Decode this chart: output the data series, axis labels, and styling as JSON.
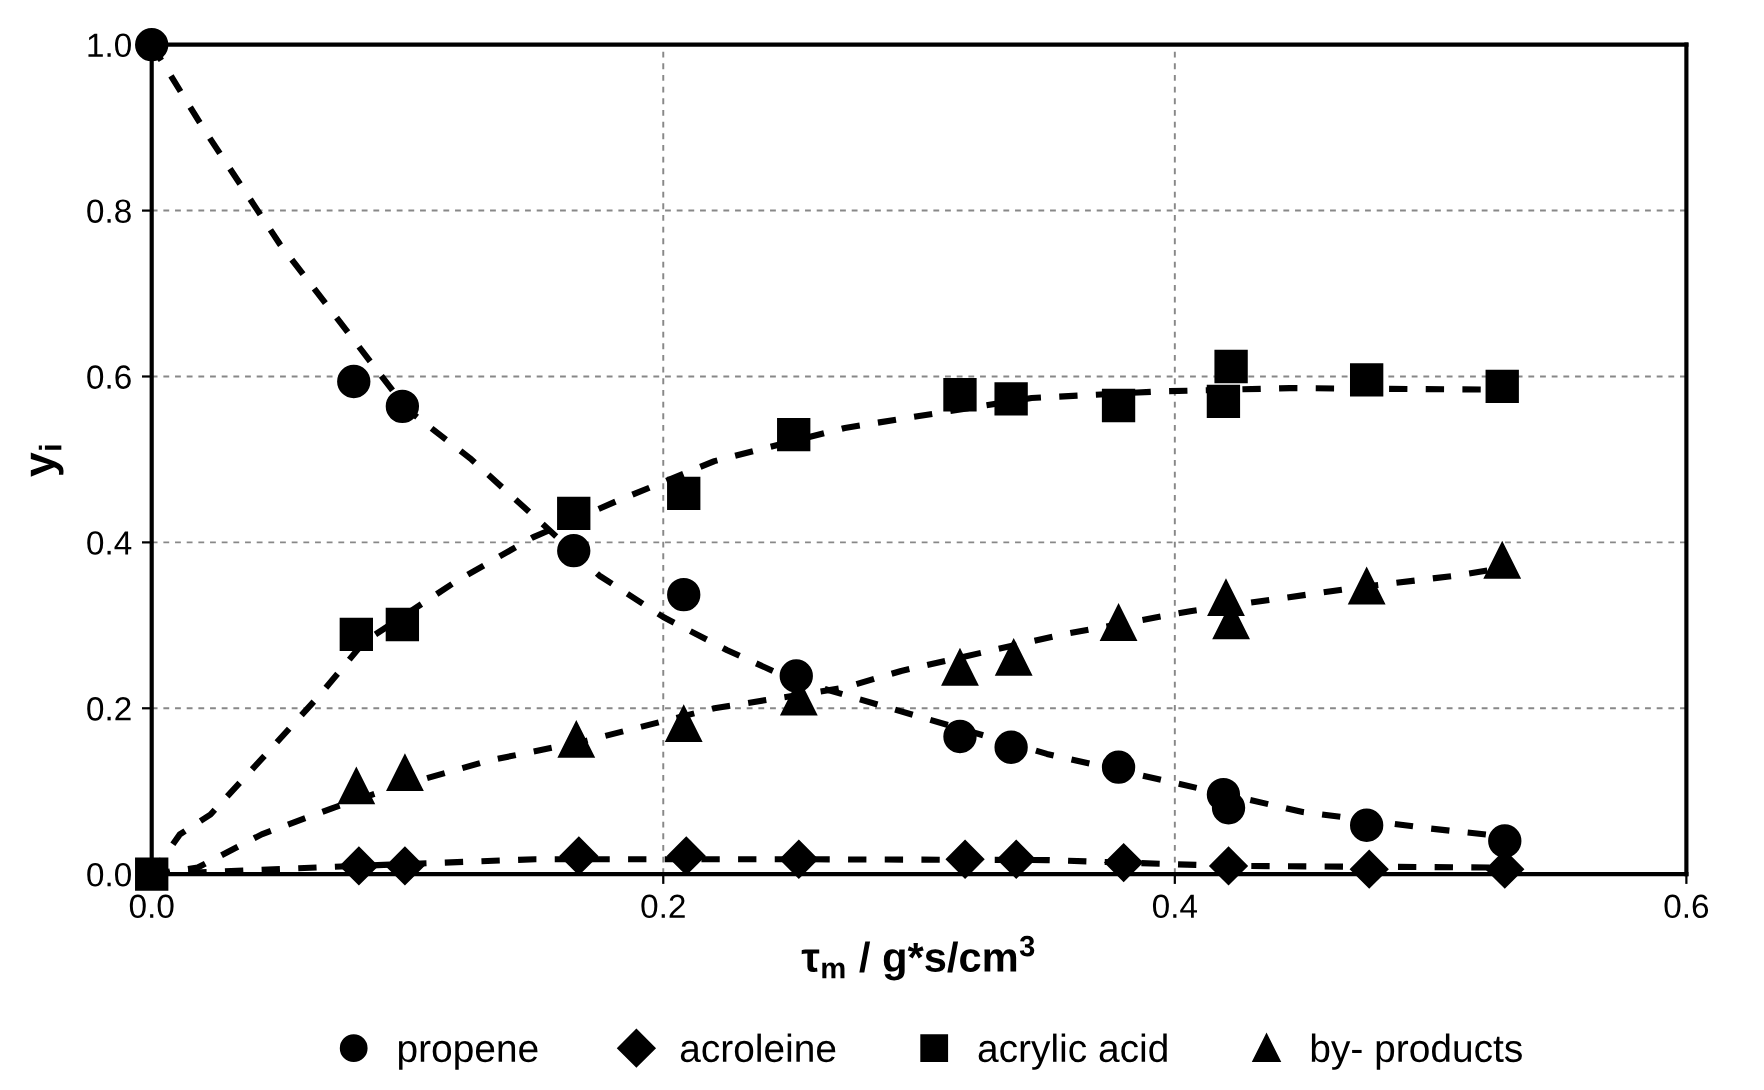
{
  "chart_data": {
    "type": "scatter",
    "xlabel": "τ$_{m}$ / g*s/cm$^{3}$",
    "ylabel": "y$_{i}$",
    "xlim": [
      0,
      0.6
    ],
    "ylim": [
      0,
      1.0
    ],
    "xticks": [
      {
        "value": 0,
        "label": "0.0"
      },
      0.2,
      0.4,
      0.6
    ],
    "yticks": [
      {
        "value": 0,
        "label": "0.0"
      },
      0.2,
      0.4,
      0.6,
      0.8,
      {
        "value": 1.0,
        "label": "1.0"
      }
    ],
    "grid": true,
    "legend": "bottom",
    "series": [
      {
        "type": "line",
        "color": "#000000",
        "marker": "none",
        "line_style": "dashed",
        "x": [
          0,
          0.02,
          0.05,
          0.08,
          0.1,
          0.125,
          0.15,
          0.175,
          0.2,
          0.225,
          0.25,
          0.3,
          0.35,
          0.4,
          0.45,
          0.5,
          0.53
        ],
        "values": [
          1,
          0.9,
          0.76,
          0.64,
          0.56,
          0.5,
          0.43,
          0.36,
          0.31,
          0.27,
          0.235,
          0.19,
          0.145,
          0.11,
          0.075,
          0.055,
          0.045
        ]
      },
      {
        "type": "line",
        "color": "#000000",
        "marker": "none",
        "line_style": "dashed",
        "x": [
          0,
          0.04,
          0.08,
          0.15,
          0.25,
          0.35,
          0.42,
          0.53
        ],
        "values": [
          0,
          0.005,
          0.01,
          0.018,
          0.018,
          0.017,
          0.01,
          0.008
        ]
      },
      {
        "type": "line",
        "color": "#000000",
        "marker": "none",
        "line_style": "dashed",
        "x": [
          0,
          0.011,
          0.023,
          0.046,
          0.066,
          0.083,
          0.119,
          0.149,
          0.182,
          0.22,
          0.271,
          0.344,
          0.394,
          0.445,
          0.53
        ],
        "values": [
          0,
          0.048,
          0.072,
          0.149,
          0.217,
          0.28,
          0.353,
          0.406,
          0.45,
          0.498,
          0.538,
          0.574,
          0.582,
          0.586,
          0.584
        ]
      },
      {
        "type": "line",
        "color": "#000000",
        "marker": "none",
        "line_style": "dashed",
        "x": [
          0,
          0.018,
          0.043,
          0.071,
          0.094,
          0.132,
          0.17,
          0.22,
          0.271,
          0.293,
          0.356,
          0.406,
          0.47,
          0.51,
          0.528
        ],
        "values": [
          0,
          0.008,
          0.048,
          0.08,
          0.104,
          0.137,
          0.161,
          0.2,
          0.225,
          0.245,
          0.289,
          0.317,
          0.345,
          0.36,
          0.369
        ]
      },
      {
        "name": "propene",
        "color": "#000000",
        "marker": "circle",
        "x": [
          0,
          0.079,
          0.098,
          0.165,
          0.208,
          0.252,
          0.316,
          0.336,
          0.378,
          0.419,
          0.421,
          0.475,
          0.529
        ],
        "values": [
          1.0,
          0.594,
          0.564,
          0.39,
          0.337,
          0.239,
          0.166,
          0.153,
          0.129,
          0.096,
          0.08,
          0.059,
          0.04
        ]
      },
      {
        "name": "acroleine",
        "color": "#000000",
        "marker": "diamond",
        "x": [
          0.081,
          0.099,
          0.167,
          0.209,
          0.253,
          0.318,
          0.338,
          0.38,
          0.421,
          0.476,
          0.529
        ],
        "values": [
          0.01,
          0.01,
          0.022,
          0.022,
          0.018,
          0.018,
          0.018,
          0.014,
          0.01,
          0.006,
          0.006
        ]
      },
      {
        "name": "acrylic acid",
        "color": "#000000",
        "marker": "square",
        "x": [
          0,
          0.08,
          0.098,
          0.165,
          0.208,
          0.251,
          0.316,
          0.336,
          0.378,
          0.419,
          0.422,
          0.475,
          0.528
        ],
        "values": [
          0,
          0.289,
          0.301,
          0.435,
          0.459,
          0.53,
          0.578,
          0.573,
          0.565,
          0.57,
          0.612,
          0.596,
          0.588
        ]
      },
      {
        "name": "by- products",
        "color": "#000000",
        "marker": "triangle",
        "x": [
          0.08,
          0.099,
          0.166,
          0.208,
          0.253,
          0.316,
          0.337,
          0.378,
          0.42,
          0.422,
          0.475,
          0.528
        ],
        "values": [
          0.106,
          0.122,
          0.162,
          0.181,
          0.213,
          0.249,
          0.261,
          0.303,
          0.333,
          0.305,
          0.347,
          0.378
        ]
      }
    ]
  }
}
